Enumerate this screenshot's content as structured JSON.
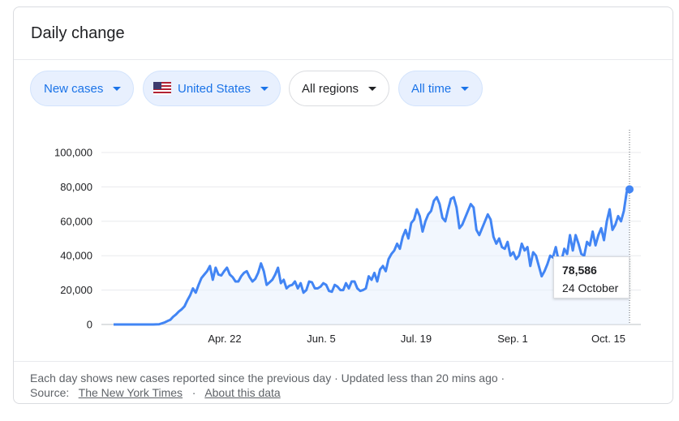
{
  "card": {
    "title": "Daily change"
  },
  "filters": [
    {
      "label": "New cases",
      "style": "blue",
      "flag": false
    },
    {
      "label": "United States",
      "style": "blue",
      "flag": true
    },
    {
      "label": "All regions",
      "style": "plain",
      "flag": false
    },
    {
      "label": "All time",
      "style": "blue",
      "flag": false
    }
  ],
  "tooltip": {
    "value": "78,586",
    "date": "24 October"
  },
  "footer": {
    "line1": "Each day shows new cases reported since the previous day · Updated less than 20 mins ago  ·",
    "source_prefix": "Source:",
    "source_link": "The New York Times",
    "separator": "·",
    "about_link": "About this data"
  },
  "colors": {
    "line": "#4285f4",
    "fill": "#e8f0fe",
    "chip_blue_text": "#1a73e8",
    "grid": "#e8eaed"
  },
  "chart_data": {
    "type": "line",
    "title": "",
    "xlabel": "",
    "ylabel": "",
    "ylim": [
      0,
      100000
    ],
    "ytick_labels": [
      "0",
      "20,000",
      "40,000",
      "60,000",
      "80,000",
      "100,000"
    ],
    "xtick_labels": [
      "Apr. 22",
      "Jun. 5",
      "Jul. 19",
      "Sep. 1",
      "Oct. 15"
    ],
    "grid": true,
    "series": [
      {
        "values": [
          0,
          0,
          0,
          0,
          0,
          0,
          0,
          0,
          0,
          0,
          0,
          0,
          0,
          1,
          10,
          30,
          100,
          600,
          1200,
          2000,
          2700,
          4500,
          5800,
          7500,
          8800,
          10500,
          14000,
          17000,
          21000,
          18500,
          23000,
          27000,
          29000,
          31000,
          34000,
          26000,
          33000,
          29000,
          28500,
          31000,
          33000,
          29000,
          27500,
          25000,
          25000,
          28000,
          30000,
          31000,
          27500,
          25000,
          26500,
          30000,
          35500,
          31000,
          23000,
          24500,
          26000,
          29000,
          33000,
          24000,
          26000,
          21000,
          22500,
          23000,
          25000,
          21000,
          24000,
          18500,
          20000,
          25000,
          24500,
          21000,
          21000,
          22000,
          24000,
          23000,
          19500,
          19000,
          23000,
          22000,
          20000,
          20000,
          24000,
          21000,
          25000,
          25000,
          21000,
          19500,
          20000,
          21000,
          28000,
          26000,
          30000,
          25000,
          32000,
          34000,
          31000,
          38000,
          41000,
          43000,
          47000,
          44000,
          51000,
          55000,
          50000,
          59000,
          61000,
          67000,
          63000,
          54000,
          60000,
          64000,
          66000,
          72000,
          74000,
          70000,
          62000,
          60000,
          67000,
          73000,
          74000,
          68000,
          56000,
          58000,
          62000,
          66000,
          70000,
          68000,
          55000,
          52000,
          56000,
          60000,
          64000,
          61000,
          51000,
          47000,
          50000,
          45000,
          44000,
          48000,
          40000,
          42000,
          38000,
          40000,
          47000,
          43000,
          45000,
          34000,
          42000,
          40000,
          34000,
          28000,
          31000,
          35000,
          40000,
          39000,
          45000,
          37000,
          37000,
          44000,
          41000,
          52000,
          43000,
          52000,
          47000,
          41000,
          40000,
          48000,
          46000,
          54000,
          46000,
          52000,
          56000,
          49000,
          60000,
          67000,
          55000,
          58000,
          63000,
          60000,
          66000,
          77000,
          78586
        ]
      }
    ]
  }
}
